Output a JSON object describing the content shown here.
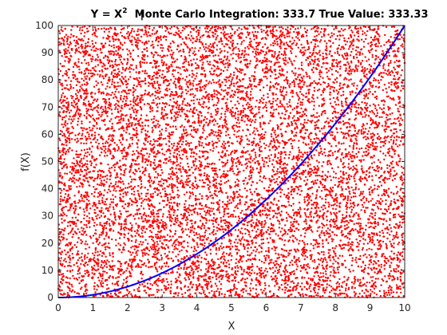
{
  "chart_data": {
    "type": "scatter",
    "title": "Y = X",
    "title_superscript": "2",
    "title_separator": "|",
    "mc_label": "Monte Carlo Integration: 333.7",
    "true_label": "True Value: 333.33",
    "xlabel": "X",
    "ylabel": "f(X)",
    "xlim": [
      0,
      10
    ],
    "ylim": [
      0,
      100
    ],
    "xticks": [
      "0",
      "1",
      "2",
      "3",
      "4",
      "5",
      "6",
      "7",
      "8",
      "9",
      "10"
    ],
    "yticks": [
      "0",
      "10",
      "20",
      "30",
      "40",
      "50",
      "60",
      "70",
      "80",
      "90",
      "100"
    ],
    "grid": false,
    "series": [
      {
        "kind": "scatter",
        "color": "#ff0000",
        "distribution": "uniform-random",
        "count": 10000,
        "x_range": [
          0,
          10
        ],
        "y_range": [
          0,
          100
        ]
      },
      {
        "kind": "line",
        "function": "y = x^2",
        "color": "#0000ff",
        "x_range": [
          0,
          10
        ]
      }
    ]
  }
}
